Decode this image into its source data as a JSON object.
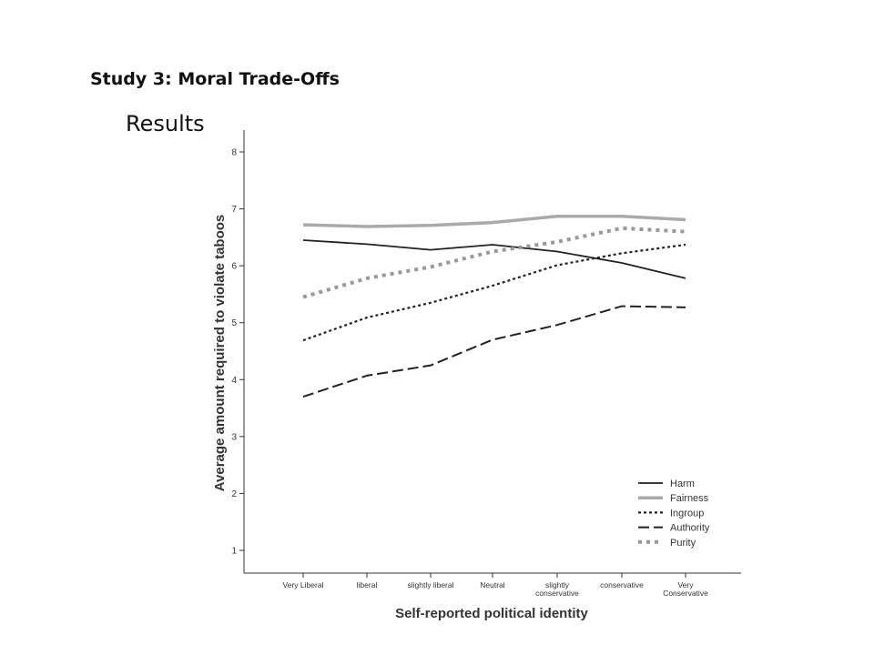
{
  "slide": {
    "title": "Study 3: Moral Trade-Offs",
    "subtitle": "Results"
  },
  "chart_data": {
    "type": "line",
    "xlabel": "Self-reported political identity",
    "ylabel": "Average amount required to violate taboos",
    "categories": [
      [
        "Very Liberal"
      ],
      [
        "liberal"
      ],
      [
        "slightly liberal"
      ],
      [
        "Neutral"
      ],
      [
        "slightly",
        "conservative"
      ],
      [
        "conservative"
      ],
      [
        "Very",
        "Conservative"
      ]
    ],
    "ylim": [
      1,
      8
    ],
    "yticks": [
      1,
      2,
      3,
      4,
      5,
      6,
      7,
      8
    ],
    "legend_position": "bottom-right",
    "grid": false,
    "series": [
      {
        "name": "Harm",
        "values": [
          6.45,
          6.38,
          6.28,
          6.37,
          6.25,
          6.05,
          5.78
        ],
        "color": "#222222",
        "style": "solid"
      },
      {
        "name": "Fairness",
        "values": [
          6.72,
          6.69,
          6.71,
          6.76,
          6.87,
          6.87,
          6.81
        ],
        "color": "#aaaaaa",
        "style": "solid-thick"
      },
      {
        "name": "Ingroup",
        "values": [
          4.69,
          5.09,
          5.35,
          5.65,
          6.01,
          6.22,
          6.37
        ],
        "color": "#222222",
        "style": "dotted"
      },
      {
        "name": "Authority",
        "values": [
          3.7,
          4.07,
          4.25,
          4.7,
          4.96,
          5.29,
          5.27
        ],
        "color": "#222222",
        "style": "dashed"
      },
      {
        "name": "Purity",
        "values": [
          5.45,
          5.78,
          5.98,
          6.25,
          6.42,
          6.66,
          6.6
        ],
        "color": "#999999",
        "style": "dotted-thick"
      }
    ]
  }
}
